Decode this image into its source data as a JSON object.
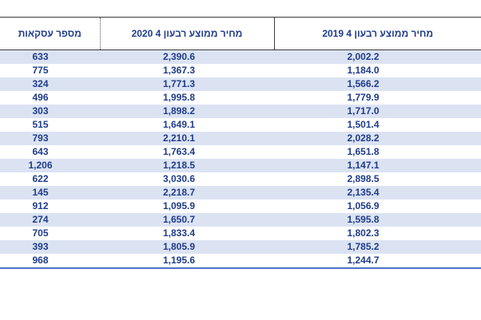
{
  "table": {
    "headers": {
      "count": "מספר עסקאות",
      "avg_2020": "מחיר ממוצע רבעון 4 2020",
      "avg_2019": "מחיר ממוצע רבעון 4 2019"
    },
    "rows": [
      {
        "count": "633",
        "avg_2020": "2,390.6",
        "avg_2019": "2,002.2"
      },
      {
        "count": "775",
        "avg_2020": "1,367.3",
        "avg_2019": "1,184.0"
      },
      {
        "count": "324",
        "avg_2020": "1,771.3",
        "avg_2019": "1,566.2"
      },
      {
        "count": "496",
        "avg_2020": "1,995.8",
        "avg_2019": "1,779.9"
      },
      {
        "count": "303",
        "avg_2020": "1,898.2",
        "avg_2019": "1,717.0"
      },
      {
        "count": "515",
        "avg_2020": "1,649.1",
        "avg_2019": "1,501.4"
      },
      {
        "count": "793",
        "avg_2020": "2,210.1",
        "avg_2019": "2,028.2"
      },
      {
        "count": "643",
        "avg_2020": "1,763.4",
        "avg_2019": "1,651.8"
      },
      {
        "count": "1,206",
        "avg_2020": "1,218.5",
        "avg_2019": "1,147.1"
      },
      {
        "count": "622",
        "avg_2020": "3,030.6",
        "avg_2019": "2,898.5"
      },
      {
        "count": "145",
        "avg_2020": "2,218.7",
        "avg_2019": "2,135.4"
      },
      {
        "count": "912",
        "avg_2020": "1,095.9",
        "avg_2019": "1,056.9"
      },
      {
        "count": "274",
        "avg_2020": "1,650.7",
        "avg_2019": "1,595.8"
      },
      {
        "count": "705",
        "avg_2020": "1,833.4",
        "avg_2019": "1,802.3"
      },
      {
        "count": "393",
        "avg_2020": "1,805.9",
        "avg_2019": "1,785.2"
      },
      {
        "count": "968",
        "avg_2020": "1,195.6",
        "avg_2019": "1,244.7"
      }
    ]
  },
  "colors": {
    "text": "#1f3c8a",
    "stripe": "#dbe3f3",
    "bottom_rule": "#4e72c4"
  }
}
